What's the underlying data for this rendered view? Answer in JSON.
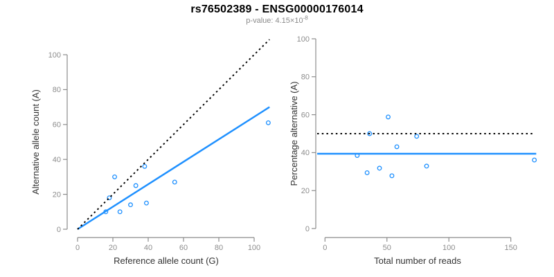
{
  "header": {
    "title": "rs76502389 - ENSG00000176014",
    "subtitle_prefix": "p-value: 4.15×10",
    "subtitle_exponent": "-8"
  },
  "colors": {
    "accent_blue": "#1E90FF",
    "line_black": "#000000",
    "axis_gray": "#8C8C8C",
    "tick_label_gray": "#8C8C8C",
    "axis_label_dark": "#333333",
    "title_black": "#000000",
    "subtitle_gray": "#8A8A8A",
    "background": "#FFFFFF"
  },
  "chart_data": [
    {
      "type": "scatter",
      "panel": "left",
      "xlabel": "Reference allele count (G)",
      "ylabel": "Alternative allele count (A)",
      "xlim": [
        0,
        108.7
      ],
      "ylim": [
        0,
        108.7
      ],
      "xticks": [
        0,
        20,
        40,
        60,
        80,
        100
      ],
      "yticks": [
        0,
        20,
        40,
        60,
        80,
        100
      ],
      "grid": false,
      "legend": "none",
      "points": [
        [
          16,
          10
        ],
        [
          18,
          18
        ],
        [
          21,
          30
        ],
        [
          24,
          10
        ],
        [
          30,
          14
        ],
        [
          33,
          25
        ],
        [
          38,
          36
        ],
        [
          39,
          15
        ],
        [
          55,
          27
        ],
        [
          108,
          61
        ]
      ],
      "lines": [
        {
          "name": "fit-line",
          "style": "solid",
          "color_key": "accent_blue",
          "x1": 0,
          "y1": 0,
          "x2": 108.7,
          "y2": 70
        },
        {
          "name": "identity-line",
          "style": "dotted",
          "color_key": "line_black",
          "x1": 0,
          "y1": 0,
          "x2": 108.7,
          "y2": 108.7
        }
      ]
    },
    {
      "type": "scatter",
      "panel": "right",
      "xlabel": "Total number of reads",
      "ylabel": "Percentage alternative (A)",
      "xlim": [
        -6,
        171
      ],
      "ylim": [
        0,
        100
      ],
      "xticks": [
        0,
        50,
        100,
        150
      ],
      "yticks": [
        0,
        20,
        40,
        60,
        80,
        100
      ],
      "grid": false,
      "legend": "none",
      "points": [
        [
          26,
          38.5
        ],
        [
          34,
          29.4
        ],
        [
          36,
          50
        ],
        [
          44,
          31.8
        ],
        [
          51,
          58.8
        ],
        [
          54,
          27.8
        ],
        [
          58,
          43.1
        ],
        [
          74,
          48.6
        ],
        [
          82,
          32.9
        ],
        [
          169,
          36.1
        ]
      ],
      "lines": [
        {
          "name": "mean-percentage-line",
          "style": "solid",
          "color_key": "accent_blue",
          "x1": -6.3,
          "y1": 39.4,
          "x2": 170.5,
          "y2": 39.4
        },
        {
          "name": "null-50pct-line",
          "style": "dotted",
          "color_key": "line_black",
          "x1": -6.3,
          "y1": 50,
          "x2": 169,
          "y2": 50
        }
      ]
    }
  ]
}
